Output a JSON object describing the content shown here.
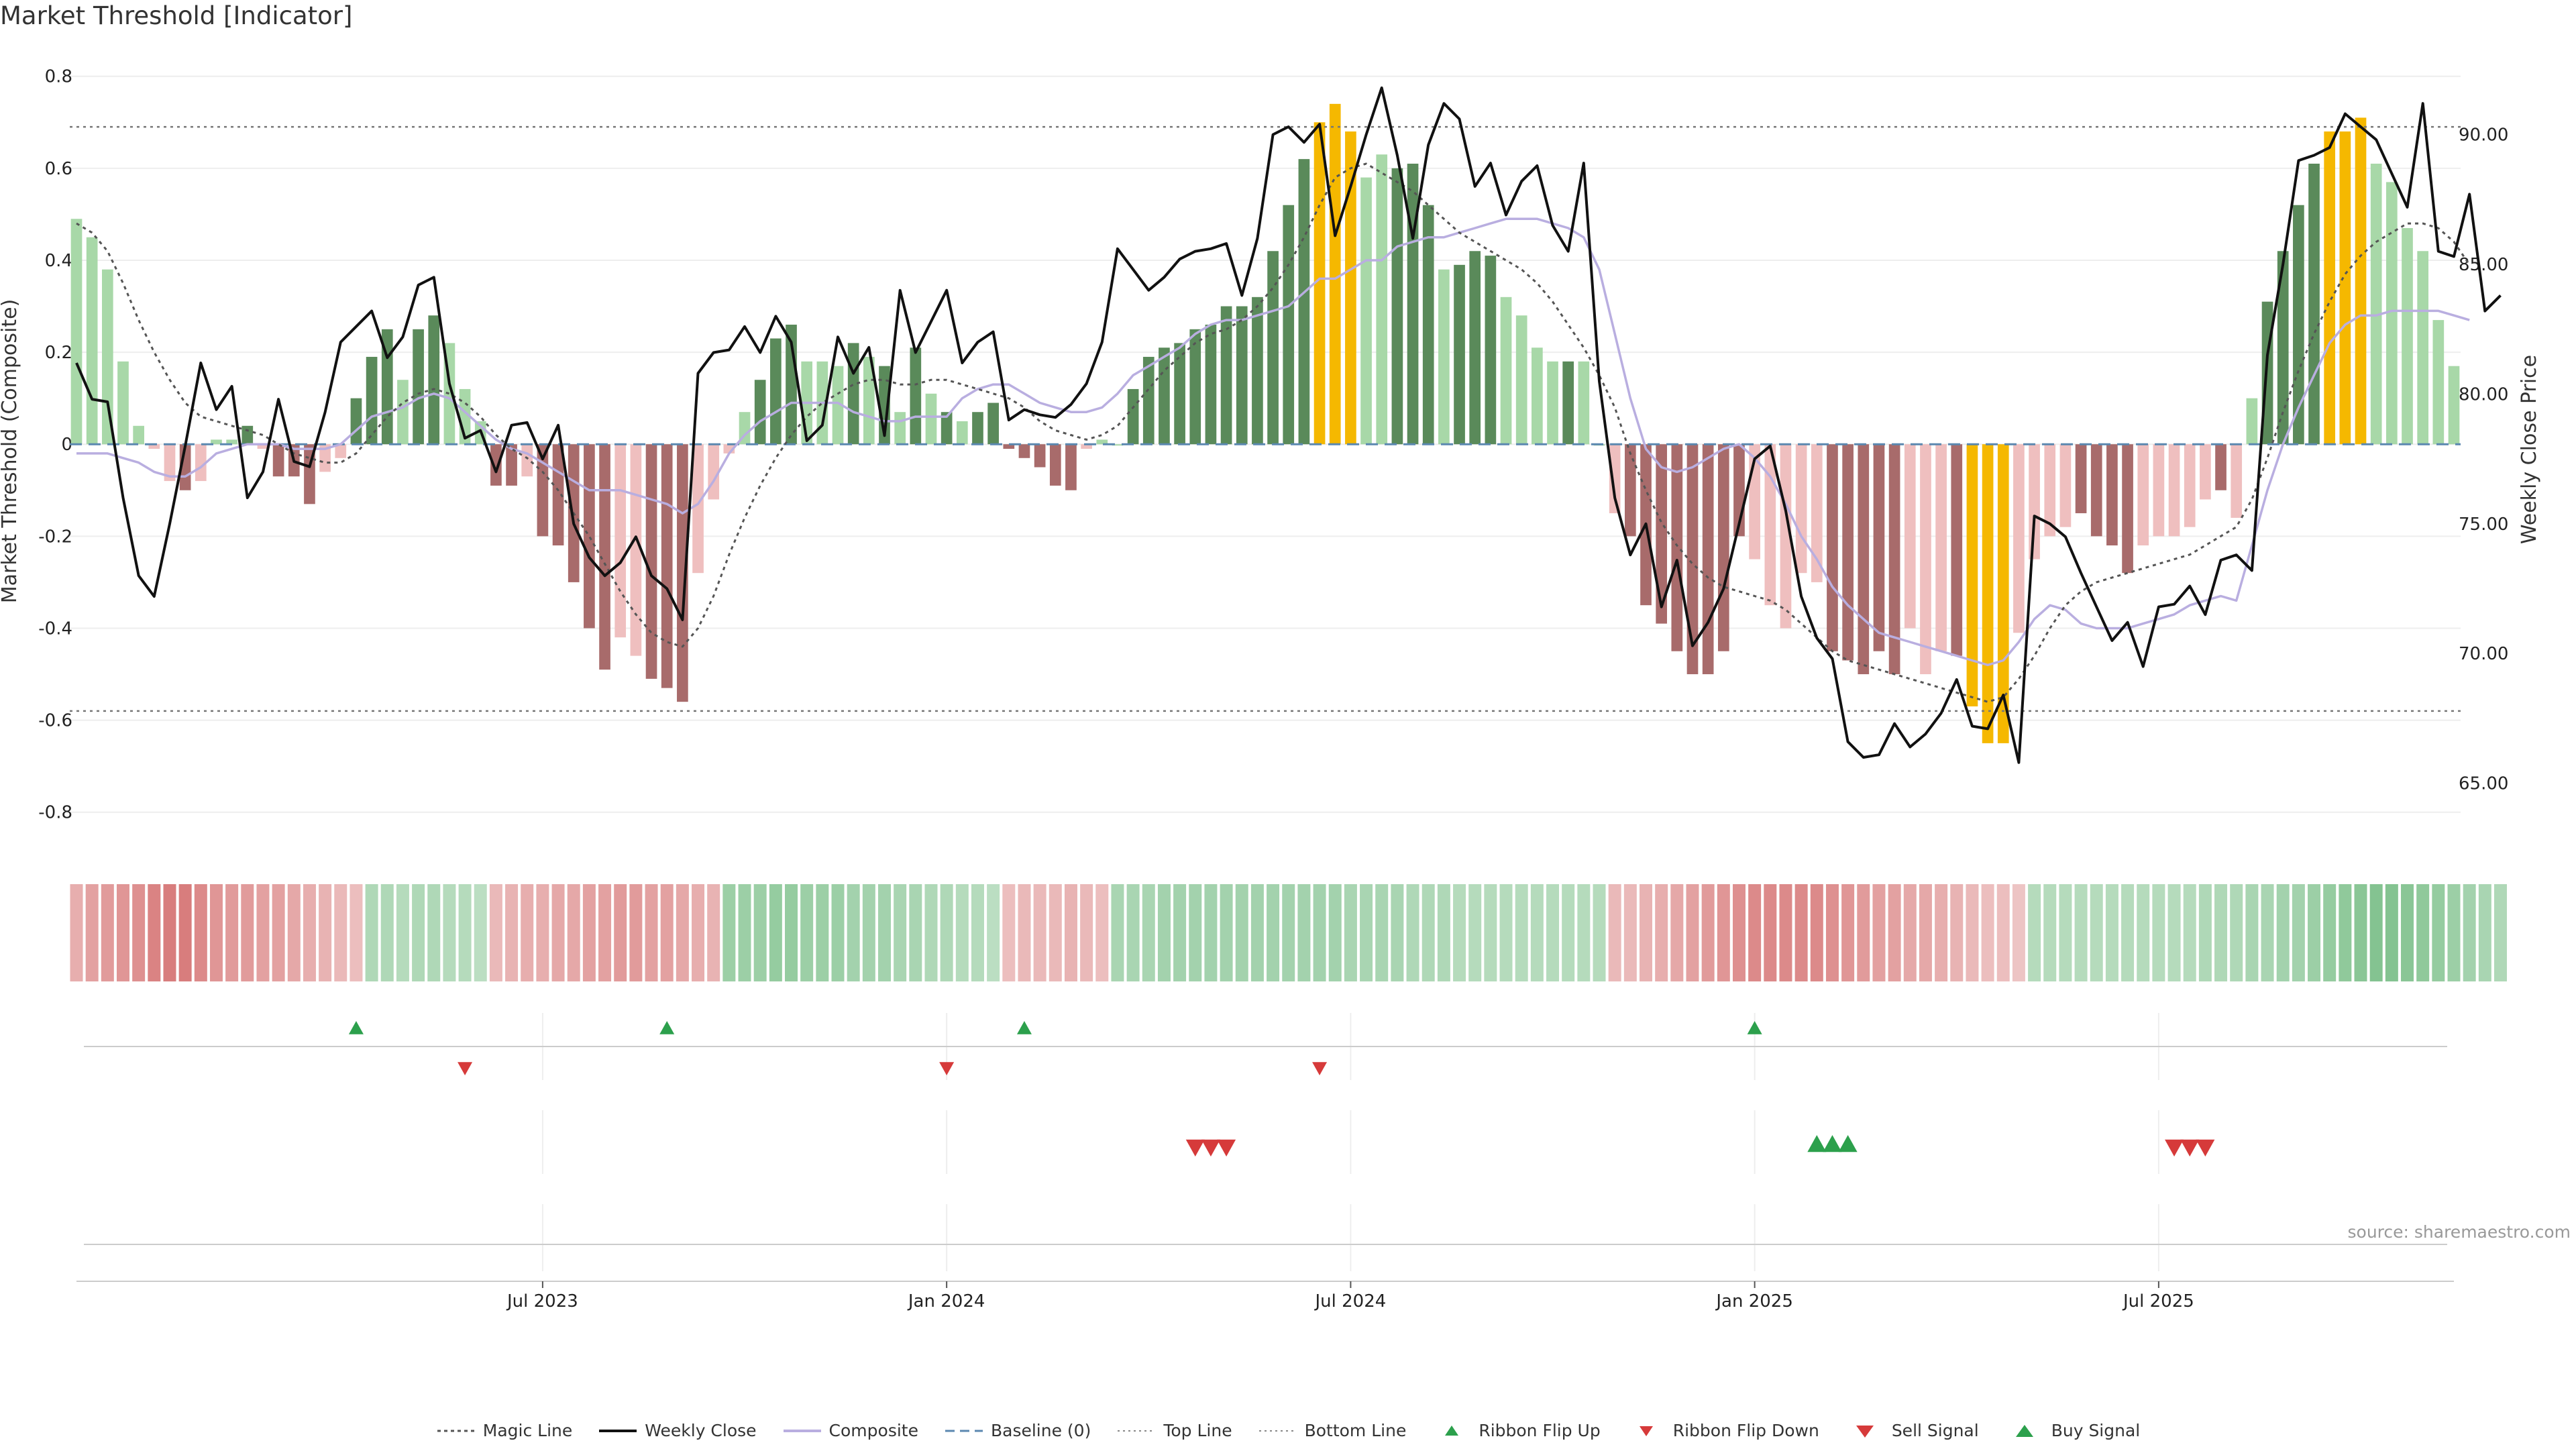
{
  "title": "Market Threshold [Indicator]",
  "source": "source: sharemaestro.com",
  "chart_data": {
    "type": "bar",
    "title": "Market Threshold [Indicator]",
    "ylabel_left": "Market Threshold (Composite)",
    "ylabel_right": "Weekly Close Price",
    "ylim_left": [
      -0.85,
      0.82
    ],
    "ylim_right": [
      63.0,
      92.6
    ],
    "yticks_left": [
      "0.8",
      "0.6",
      "0.4",
      "0.2",
      "0",
      "-0.2",
      "-0.4",
      "-0.6",
      "-0.8"
    ],
    "yticks_right": [
      "90.00",
      "85.00",
      "80.00",
      "75.00",
      "70.00",
      "65.00"
    ],
    "x_ticks": [
      {
        "label": "Jul 2023",
        "week": 30
      },
      {
        "label": "Jan 2024",
        "week": 56
      },
      {
        "label": "Jul 2024",
        "week": 82
      },
      {
        "label": "Jan 2025",
        "week": 108
      },
      {
        "label": "Jul 2025",
        "week": 134
      }
    ],
    "top_line": 0.69,
    "bottom_line": -0.58,
    "baseline": 0,
    "colors": {
      "strong_up": "#5a8a5a",
      "weak_up": "#a8d8a8",
      "strong_down": "#a86b6b",
      "weak_down": "#efbfbf",
      "extreme": "#f5b800",
      "close_line": "#111111",
      "composite_line": "#b9aee0",
      "magic_line": "#555555",
      "baseline_line": "#5b88b0",
      "threshold_line": "#777777",
      "buy_marker": "#2ca04c",
      "sell_marker": "#d63a3a"
    },
    "composite_bars": [
      0.49,
      0.45,
      0.38,
      0.18,
      0.04,
      -0.01,
      -0.08,
      -0.1,
      -0.08,
      0.01,
      0.01,
      0.04,
      -0.01,
      -0.07,
      -0.07,
      -0.13,
      -0.06,
      -0.03,
      0.1,
      0.19,
      0.25,
      0.14,
      0.25,
      0.28,
      0.22,
      0.12,
      0.05,
      -0.09,
      -0.09,
      -0.07,
      -0.2,
      -0.22,
      -0.3,
      -0.4,
      -0.49,
      -0.42,
      -0.46,
      -0.51,
      -0.53,
      -0.56,
      -0.28,
      -0.12,
      -0.02,
      0.07,
      0.14,
      0.23,
      0.26,
      0.18,
      0.18,
      0.17,
      0.22,
      0.19,
      0.17,
      0.07,
      0.21,
      0.11,
      0.07,
      0.05,
      0.07,
      0.09,
      -0.01,
      -0.03,
      -0.05,
      -0.09,
      -0.1,
      -0.01,
      0.01,
      0.0,
      0.12,
      0.19,
      0.21,
      0.22,
      0.25,
      0.26,
      0.3,
      0.3,
      0.32,
      0.42,
      0.52,
      0.62,
      0.7,
      0.74,
      0.68,
      0.58,
      0.63,
      0.6,
      0.61,
      0.52,
      0.38,
      0.39,
      0.42,
      0.41,
      0.32,
      0.28,
      0.21,
      0.18,
      0.18,
      0.18,
      0.0,
      -0.15,
      -0.2,
      -0.35,
      -0.39,
      -0.45,
      -0.5,
      -0.5,
      -0.45,
      -0.2,
      -0.25,
      -0.35,
      -0.4,
      -0.28,
      -0.3,
      -0.45,
      -0.47,
      -0.5,
      -0.45,
      -0.5,
      -0.4,
      -0.5,
      -0.45,
      -0.46,
      -0.57,
      -0.65,
      -0.65,
      -0.41,
      -0.25,
      -0.2,
      -0.18,
      -0.15,
      -0.2,
      -0.22,
      -0.28,
      -0.22,
      -0.2,
      -0.2,
      -0.18,
      -0.12,
      -0.1,
      -0.16,
      0.1,
      0.31,
      0.42,
      0.52,
      0.61,
      0.68,
      0.68,
      0.71,
      0.61,
      0.57,
      0.47,
      0.42,
      0.27,
      0.17
    ],
    "bar_class": [
      "w",
      "w",
      "w",
      "w",
      "w",
      "w",
      "w",
      "s",
      "w",
      "w",
      "w",
      "s",
      "w",
      "s",
      "s",
      "s",
      "w",
      "w",
      "s",
      "s",
      "s",
      "w",
      "s",
      "s",
      "w",
      "w",
      "w",
      "s",
      "s",
      "w",
      "s",
      "s",
      "s",
      "s",
      "s",
      "w",
      "w",
      "s",
      "s",
      "s",
      "w",
      "w",
      "w",
      "w",
      "s",
      "s",
      "s",
      "w",
      "w",
      "w",
      "s",
      "w",
      "s",
      "w",
      "s",
      "w",
      "s",
      "w",
      "s",
      "s",
      "s",
      "s",
      "s",
      "s",
      "s",
      "w",
      "w",
      "w",
      "s",
      "s",
      "s",
      "s",
      "s",
      "s",
      "s",
      "s",
      "s",
      "s",
      "s",
      "s",
      "x",
      "x",
      "x",
      "w",
      "w",
      "s",
      "s",
      "s",
      "w",
      "s",
      "s",
      "s",
      "w",
      "w",
      "w",
      "w",
      "s",
      "w",
      "w",
      "w",
      "s",
      "s",
      "s",
      "s",
      "s",
      "s",
      "s",
      "s",
      "w",
      "w",
      "w",
      "w",
      "w",
      "s",
      "s",
      "s",
      "s",
      "s",
      "w",
      "w",
      "w",
      "s",
      "x",
      "x",
      "x",
      "w",
      "w",
      "w",
      "w",
      "s",
      "s",
      "s",
      "s",
      "w",
      "w",
      "w",
      "w",
      "w",
      "s",
      "w",
      "w",
      "s",
      "s",
      "s",
      "s",
      "x",
      "x",
      "x",
      "w",
      "w",
      "w",
      "w",
      "w",
      "w"
    ],
    "weekly_close": [
      81.2,
      79.8,
      79.7,
      76.0,
      73.0,
      72.2,
      75.0,
      78.0,
      81.2,
      79.4,
      80.3,
      76.0,
      77.0,
      79.8,
      77.4,
      77.2,
      79.3,
      82.0,
      82.6,
      83.2,
      81.4,
      82.2,
      84.2,
      84.5,
      80.4,
      78.3,
      78.6,
      77.0,
      78.8,
      78.9,
      77.5,
      78.8,
      75.0,
      73.7,
      73.0,
      73.5,
      74.5,
      73.0,
      72.5,
      71.3,
      80.8,
      81.6,
      81.7,
      82.6,
      81.6,
      83.0,
      82.0,
      78.2,
      78.8,
      82.2,
      80.8,
      81.8,
      78.4,
      84.0,
      81.6,
      82.8,
      84.0,
      81.2,
      82.0,
      82.4,
      79.0,
      79.4,
      79.2,
      79.1,
      79.6,
      80.4,
      82.0,
      85.6,
      84.8,
      84.0,
      84.5,
      85.2,
      85.5,
      85.6,
      85.8,
      83.8,
      86.0,
      90.0,
      90.3,
      89.7,
      90.4,
      86.1,
      88.0,
      90.0,
      91.8,
      89.2,
      86.0,
      89.6,
      91.2,
      90.6,
      88.0,
      88.9,
      86.9,
      88.2,
      88.8,
      86.5,
      85.5,
      88.9,
      80.5,
      76.0,
      73.8,
      75.0,
      71.8,
      73.6,
      70.3,
      71.2,
      72.5,
      75.0,
      77.5,
      78.0,
      75.5,
      72.2,
      70.6,
      69.8,
      66.6,
      66.0,
      66.1,
      67.3,
      66.4,
      66.9,
      67.7,
      69.0,
      67.2,
      67.1,
      68.4,
      65.8,
      75.3,
      75.0,
      74.5,
      73.1,
      71.8,
      70.5,
      71.2,
      69.5,
      71.8,
      71.9,
      72.6,
      71.5,
      73.6,
      73.8,
      73.2,
      81.5,
      85.0,
      89.0,
      89.2,
      89.5,
      90.8,
      90.3,
      89.8,
      88.5,
      87.2,
      91.2,
      85.5,
      85.3,
      87.7,
      83.2,
      83.8
    ],
    "composite_line": [
      -0.02,
      -0.02,
      -0.02,
      -0.03,
      -0.04,
      -0.06,
      -0.07,
      -0.07,
      -0.05,
      -0.02,
      -0.01,
      0.0,
      0.0,
      0.0,
      -0.01,
      -0.01,
      -0.01,
      0.0,
      0.03,
      0.06,
      0.07,
      0.08,
      0.1,
      0.11,
      0.1,
      0.07,
      0.04,
      0.01,
      -0.01,
      -0.02,
      -0.04,
      -0.06,
      -0.08,
      -0.1,
      -0.1,
      -0.1,
      -0.11,
      -0.12,
      -0.13,
      -0.15,
      -0.13,
      -0.08,
      -0.02,
      0.02,
      0.05,
      0.07,
      0.09,
      0.09,
      0.09,
      0.09,
      0.07,
      0.06,
      0.05,
      0.05,
      0.06,
      0.06,
      0.06,
      0.1,
      0.12,
      0.13,
      0.13,
      0.11,
      0.09,
      0.08,
      0.07,
      0.07,
      0.08,
      0.11,
      0.15,
      0.17,
      0.19,
      0.21,
      0.24,
      0.26,
      0.27,
      0.27,
      0.28,
      0.29,
      0.3,
      0.33,
      0.36,
      0.36,
      0.38,
      0.4,
      0.4,
      0.43,
      0.44,
      0.45,
      0.45,
      0.46,
      0.47,
      0.48,
      0.49,
      0.49,
      0.49,
      0.48,
      0.47,
      0.45,
      0.38,
      0.24,
      0.1,
      -0.01,
      -0.05,
      -0.06,
      -0.05,
      -0.03,
      -0.01,
      0.0,
      -0.03,
      -0.07,
      -0.13,
      -0.2,
      -0.25,
      -0.31,
      -0.35,
      -0.38,
      -0.41,
      -0.42,
      -0.43,
      -0.44,
      -0.45,
      -0.46,
      -0.47,
      -0.48,
      -0.47,
      -0.43,
      -0.38,
      -0.35,
      -0.36,
      -0.39,
      -0.4,
      -0.4,
      -0.4,
      -0.39,
      -0.38,
      -0.37,
      -0.35,
      -0.34,
      -0.33,
      -0.34,
      -0.22,
      -0.1,
      0.0,
      0.08,
      0.15,
      0.22,
      0.26,
      0.28,
      0.28,
      0.29,
      0.29,
      0.29,
      0.29,
      0.28,
      0.27
    ],
    "magic_line": [
      0.48,
      0.46,
      0.42,
      0.35,
      0.27,
      0.2,
      0.14,
      0.09,
      0.06,
      0.05,
      0.04,
      0.03,
      0.02,
      0.0,
      -0.02,
      -0.03,
      -0.04,
      -0.04,
      -0.02,
      0.02,
      0.06,
      0.09,
      0.11,
      0.12,
      0.11,
      0.09,
      0.06,
      0.02,
      -0.01,
      -0.03,
      -0.06,
      -0.1,
      -0.15,
      -0.2,
      -0.26,
      -0.32,
      -0.37,
      -0.41,
      -0.43,
      -0.44,
      -0.4,
      -0.33,
      -0.24,
      -0.16,
      -0.09,
      -0.03,
      0.02,
      0.06,
      0.09,
      0.11,
      0.13,
      0.14,
      0.14,
      0.13,
      0.13,
      0.14,
      0.14,
      0.13,
      0.12,
      0.11,
      0.1,
      0.08,
      0.05,
      0.03,
      0.02,
      0.01,
      0.02,
      0.04,
      0.08,
      0.12,
      0.16,
      0.19,
      0.22,
      0.24,
      0.25,
      0.27,
      0.3,
      0.34,
      0.39,
      0.45,
      0.52,
      0.58,
      0.6,
      0.61,
      0.59,
      0.57,
      0.55,
      0.52,
      0.49,
      0.46,
      0.44,
      0.42,
      0.4,
      0.38,
      0.35,
      0.31,
      0.26,
      0.21,
      0.15,
      0.08,
      -0.02,
      -0.1,
      -0.17,
      -0.22,
      -0.26,
      -0.29,
      -0.31,
      -0.32,
      -0.33,
      -0.34,
      -0.36,
      -0.39,
      -0.42,
      -0.45,
      -0.47,
      -0.48,
      -0.49,
      -0.5,
      -0.51,
      -0.52,
      -0.53,
      -0.54,
      -0.55,
      -0.56,
      -0.55,
      -0.51,
      -0.46,
      -0.4,
      -0.35,
      -0.32,
      -0.3,
      -0.29,
      -0.28,
      -0.27,
      -0.26,
      -0.25,
      -0.24,
      -0.22,
      -0.2,
      -0.18,
      -0.12,
      -0.03,
      0.07,
      0.16,
      0.24,
      0.31,
      0.37,
      0.41,
      0.44,
      0.46,
      0.48,
      0.48,
      0.47,
      0.44,
      0.39
    ],
    "ribbon": [
      "-0.4",
      "-0.5",
      "-0.55",
      "-0.6",
      "-0.65",
      "-0.75",
      "-0.8",
      "-0.8",
      "-0.7",
      "-0.6",
      "-0.55",
      "-0.55",
      "-0.5",
      "-0.5",
      "-0.45",
      "-0.4",
      "-0.35",
      "-0.3",
      "-0.25",
      "0.35",
      "0.35",
      "0.3",
      "0.35",
      "0.35",
      "0.3",
      "0.3",
      "0.25",
      "-0.3",
      "-0.35",
      "-0.4",
      "-0.4",
      "-0.45",
      "-0.45",
      "-0.5",
      "-0.5",
      "-0.55",
      "-0.55",
      "-0.5",
      "-0.5",
      "-0.45",
      "-0.4",
      "-0.35",
      "0.5",
      "0.5",
      "0.5",
      "0.55",
      "0.55",
      "0.5",
      "0.5",
      "0.5",
      "0.45",
      "0.45",
      "0.45",
      "0.4",
      "0.4",
      "0.35",
      "0.35",
      "0.3",
      "0.3",
      "0.25",
      "-0.25",
      "-0.3",
      "-0.3",
      "-0.3",
      "-0.35",
      "-0.3",
      "-0.25",
      "0.4",
      "0.4",
      "0.4",
      "0.45",
      "0.45",
      "0.45",
      "0.45",
      "0.45",
      "0.45",
      "0.45",
      "0.45",
      "0.45",
      "0.45",
      "0.45",
      "0.45",
      "0.4",
      "0.4",
      "0.4",
      "0.4",
      "0.35",
      "0.35",
      "0.35",
      "0.3",
      "0.3",
      "0.3",
      "0.3",
      "0.3",
      "0.3",
      "0.3",
      "0.3",
      "0.3",
      "0.3",
      "-0.3",
      "-0.3",
      "-0.35",
      "-0.4",
      "-0.45",
      "-0.5",
      "-0.55",
      "-0.6",
      "-0.65",
      "-0.7",
      "-0.7",
      "-0.7",
      "-0.7",
      "-0.7",
      "-0.65",
      "-0.6",
      "-0.55",
      "-0.5",
      "-0.5",
      "-0.45",
      "-0.45",
      "-0.4",
      "-0.35",
      "-0.3",
      "-0.25",
      "-0.25",
      "-0.2",
      "0.3",
      "0.3",
      "0.3",
      "0.3",
      "0.3",
      "0.3",
      "0.3",
      "0.3",
      "0.3",
      "0.3",
      "0.3",
      "0.35",
      "0.35",
      "0.35",
      "0.4",
      "0.4",
      "0.45",
      "0.45",
      "0.5",
      "0.55",
      "0.6",
      "0.65",
      "0.7",
      "0.7",
      "0.65",
      "0.6",
      "0.55",
      "0.5",
      "0.45",
      "0.4",
      "0.35"
    ],
    "ribbon_flip_up": [
      18,
      38,
      61,
      108
    ],
    "ribbon_flip_down": [
      25,
      56,
      80
    ],
    "sell_signals": [
      72,
      73,
      74,
      135,
      136,
      137
    ],
    "buy_signals": [
      112,
      113,
      114
    ],
    "legend": [
      {
        "label": "Magic Line",
        "kind": "dotted"
      },
      {
        "label": "Weekly Close",
        "kind": "solid"
      },
      {
        "label": "Composite",
        "kind": "lavender"
      },
      {
        "label": "Baseline (0)",
        "kind": "dashed"
      },
      {
        "label": "Top Line",
        "kind": "thin-dotted"
      },
      {
        "label": "Bottom Line",
        "kind": "thin-dotted"
      },
      {
        "label": "Ribbon Flip Up",
        "kind": "up-small"
      },
      {
        "label": "Ribbon Flip Down",
        "kind": "down-small"
      },
      {
        "label": "Sell Signal",
        "kind": "down-big"
      },
      {
        "label": "Buy Signal",
        "kind": "up-big"
      }
    ]
  }
}
